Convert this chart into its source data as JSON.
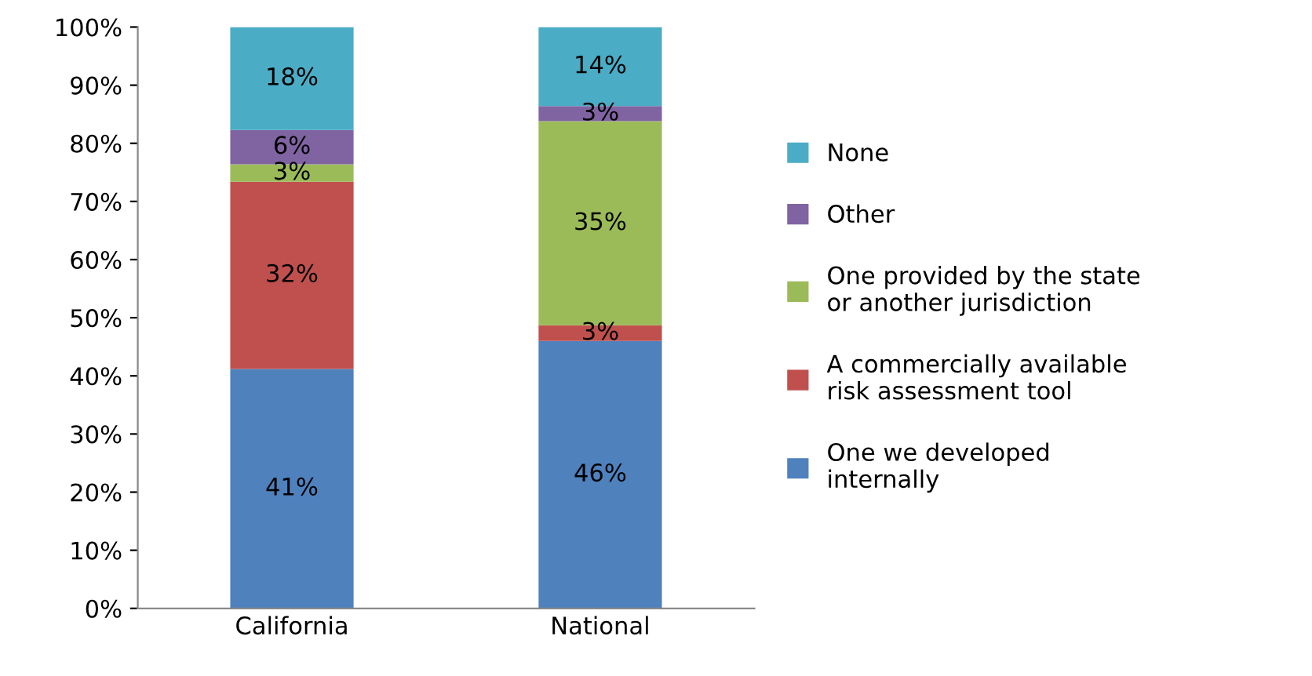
{
  "chart_data": {
    "type": "bar",
    "stacked": true,
    "categories": [
      "California",
      "National"
    ],
    "series": [
      {
        "name": "One we developed\ninternally",
        "color": "#4f81bd",
        "values": [
          41.2,
          46
        ],
        "value_labels": [
          "41%",
          "46%"
        ]
      },
      {
        "name": "A commercially available\nrisk assessment tool",
        "color": "#c0504d",
        "values": [
          32.2,
          2.7
        ],
        "value_labels": [
          "32%",
          "3%"
        ]
      },
      {
        "name": "One provided by the state\nor another jurisdiction",
        "color": "#9bbb59",
        "values": [
          3.0,
          35.1
        ],
        "value_labels": [
          "3%",
          "35%"
        ]
      },
      {
        "name": "Other",
        "color": "#8064a2",
        "values": [
          5.9,
          2.6
        ],
        "value_labels": [
          "6%",
          "3%"
        ]
      },
      {
        "name": "None",
        "color": "#4bacc6",
        "values": [
          17.7,
          13.6
        ],
        "value_labels": [
          "18%",
          "14%"
        ]
      }
    ],
    "ylim": [
      0,
      100
    ],
    "yticks": [
      {
        "value": 0,
        "label": "0%"
      },
      {
        "value": 10,
        "label": "10%"
      },
      {
        "value": 20,
        "label": "20%"
      },
      {
        "value": 30,
        "label": "30%"
      },
      {
        "value": 40,
        "label": "40%"
      },
      {
        "value": 50,
        "label": "50%"
      },
      {
        "value": 60,
        "label": "60%"
      },
      {
        "value": 70,
        "label": "70%"
      },
      {
        "value": 80,
        "label": "80%"
      },
      {
        "value": 90,
        "label": "90%"
      },
      {
        "value": 100,
        "label": "100%"
      }
    ],
    "grid": false,
    "legend": "right"
  }
}
